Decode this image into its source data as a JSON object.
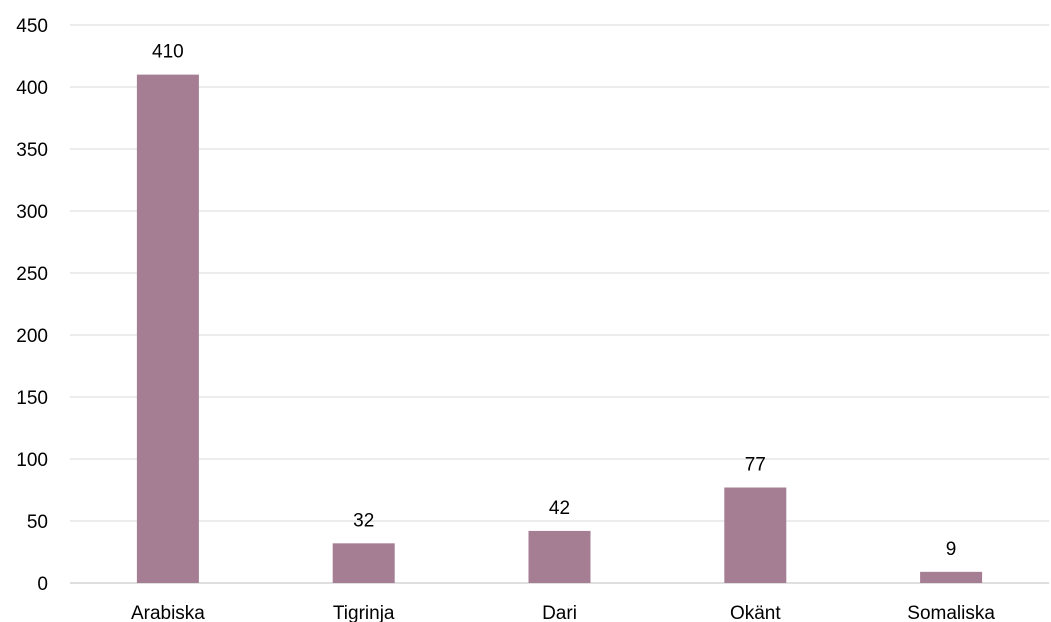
{
  "chart_data": {
    "type": "bar",
    "title": "",
    "xlabel": "",
    "ylabel": "",
    "categories": [
      "Arabiska",
      "Tigrinja",
      "Dari",
      "Okänt",
      "Somaliska"
    ],
    "values": [
      410,
      32,
      42,
      77,
      9
    ],
    "data_labels": [
      "410",
      "32",
      "42",
      "77",
      "9"
    ],
    "ylim": [
      0,
      450
    ],
    "yticks": [
      0,
      50,
      100,
      150,
      200,
      250,
      300,
      350,
      400,
      450
    ],
    "grid": true,
    "legend": "none",
    "colors": {
      "bar": "#a67e93",
      "grid": "#d9d9d9",
      "axis": "#bfbfbf",
      "text": "#000000"
    }
  }
}
